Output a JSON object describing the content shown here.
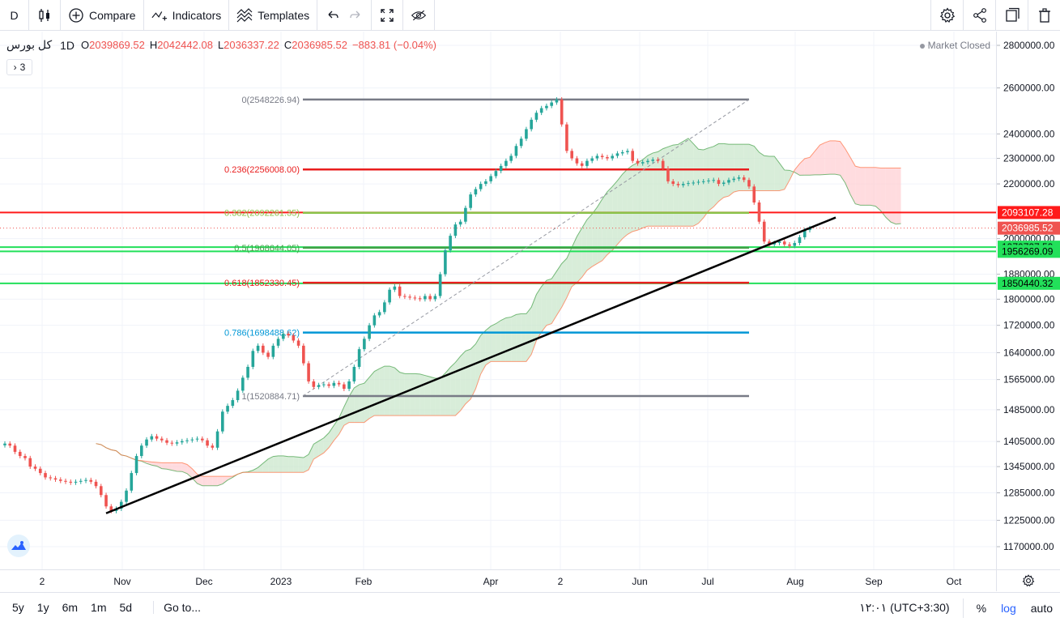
{
  "toolbar": {
    "interval": "D",
    "compare_label": "Compare",
    "indicators_label": "Indicators",
    "templates_label": "Templates"
  },
  "legend": {
    "symbol": "کل بورس",
    "timeframe": "1D",
    "o_label": "O",
    "o_value": "2039869.52",
    "h_label": "H",
    "h_value": "2042442.08",
    "l_label": "L",
    "l_value": "2036337.22",
    "c_label": "C",
    "c_value": "2036985.52",
    "change": "−883.81 (−0.04%)",
    "toggle_label": "3"
  },
  "market_status": "Market Closed",
  "bottombar": {
    "ranges": [
      "5y",
      "1y",
      "6m",
      "1m",
      "5d"
    ],
    "goto_label": "Go to...",
    "clock": "۱۲:۰۱ (UTC+3:30)",
    "percent_label": "%",
    "log_label": "log",
    "auto_label": "auto"
  },
  "colors": {
    "up": "#26a69a",
    "down": "#ef5350",
    "cloud_bull": "#c8e6c9",
    "cloud_bear": "#ffcdd2",
    "fib_0": "#787b86",
    "fib_236": "#e91e1e",
    "fib_382": "#8bc34a",
    "fib_5": "#43a047",
    "fib_618": "#e91e1e",
    "fib_786": "#0097d6",
    "fib_1": "#787b86",
    "hline_red": "#ff1a1a",
    "hline_green": "#22e05a"
  },
  "chart_data": {
    "type": "candlestick",
    "title": "",
    "price_scale": "log",
    "x_ticks": [
      "2",
      "Nov",
      "Dec",
      "2023",
      "Feb",
      "Apr",
      "2",
      "Jun",
      "Jul",
      "Aug",
      "Sep",
      "Oct"
    ],
    "y_ticks": [
      2800000,
      2600000,
      2400000,
      2300000,
      2200000,
      2000000,
      1880000,
      1800000,
      1720000,
      1640000,
      1565000,
      1485000,
      1405000,
      1345000,
      1285000,
      1225000,
      1170000
    ],
    "y_tick_labels": [
      "2800000.00",
      "2600000.00",
      "2400000.00",
      "2300000.00",
      "2200000.00",
      "2000000.00",
      "1880000.00",
      "1800000.00",
      "1720000.00",
      "1640000.00",
      "1565000.00",
      "1485000.00",
      "1405000.00",
      "1345000.00",
      "1285000.00",
      "1225000.00",
      "1170000.00"
    ],
    "fibonacci_levels": [
      {
        "ratio": "0",
        "value": 2548226.94,
        "label": "0(2548226.94)"
      },
      {
        "ratio": "0.236",
        "value": 2256008.0,
        "label": "0.236(2256008.00)"
      },
      {
        "ratio": "0.382",
        "value": 2092261.35,
        "label": "0.382(2092261.35)"
      },
      {
        "ratio": "0.5",
        "value": 1968644.05,
        "label": "0.5(1968644.05)"
      },
      {
        "ratio": "0.618",
        "value": 1852330.45,
        "label": "0.618(1852330.45)"
      },
      {
        "ratio": "0.786",
        "value": 1698488.62,
        "label": "0.786(1698488.62)"
      },
      {
        "ratio": "1",
        "value": 1520884.71,
        "label": "1(1520884.71)"
      }
    ],
    "horizontal_lines": [
      {
        "value": 2093107.28,
        "label": "2093107.28",
        "color": "red"
      },
      {
        "value": 1970727.59,
        "label": "1970727.59",
        "color": "green"
      },
      {
        "value": 1956269.09,
        "label": "1956269.09",
        "color": "green"
      },
      {
        "value": 1850440.32,
        "label": "1850440.32",
        "color": "green"
      }
    ],
    "last_price": {
      "value": 2036985.52,
      "label": "2036985.52"
    },
    "series": [
      {
        "name": "",
        "close": [
          1400000,
          1395000,
          1380000,
          1370000,
          1365000,
          1345000,
          1340000,
          1330000,
          1320000,
          1318000,
          1315000,
          1312000,
          1310000,
          1308000,
          1310000,
          1312000,
          1314000,
          1310000,
          1300000,
          1280000,
          1255000,
          1245000,
          1250000,
          1265000,
          1290000,
          1330000,
          1370000,
          1395000,
          1410000,
          1418000,
          1412000,
          1408000,
          1402000,
          1400000,
          1403000,
          1406000,
          1408000,
          1410000,
          1412000,
          1408000,
          1395000,
          1390000,
          1430000,
          1480000,
          1495000,
          1510000,
          1535000,
          1570000,
          1600000,
          1645000,
          1660000,
          1640000,
          1628000,
          1660000,
          1680000,
          1695000,
          1690000,
          1675000,
          1660000,
          1610000,
          1560000,
          1545000,
          1550000,
          1552000,
          1548000,
          1556000,
          1552000,
          1540000,
          1560000,
          1600000,
          1650000,
          1680000,
          1720000,
          1750000,
          1760000,
          1790000,
          1830000,
          1840000,
          1810000,
          1808000,
          1805000,
          1803000,
          1800000,
          1810000,
          1800000,
          1810000,
          1880000,
          1960000,
          2010000,
          2050000,
          2060000,
          2110000,
          2160000,
          2180000,
          2200000,
          2210000,
          2230000,
          2250000,
          2270000,
          2290000,
          2310000,
          2350000,
          2380000,
          2420000,
          2460000,
          2490000,
          2510000,
          2520000,
          2535000,
          2548000,
          2440000,
          2330000,
          2300000,
          2280000,
          2270000,
          2290000,
          2300000,
          2310000,
          2305000,
          2300000,
          2310000,
          2320000,
          2325000,
          2330000,
          2290000,
          2280000,
          2285000,
          2290000,
          2295000,
          2290000,
          2260000,
          2210000,
          2200000,
          2195000,
          2200000,
          2203000,
          2205000,
          2208000,
          2210000,
          2213000,
          2215000,
          2200000,
          2205000,
          2215000,
          2220000,
          2225000,
          2215000,
          2190000,
          2130000,
          2060000,
          1990000,
          1980000,
          1985000,
          1990000,
          1980000,
          1975000,
          1985000,
          2005000,
          2030000,
          2037000
        ]
      }
    ]
  }
}
